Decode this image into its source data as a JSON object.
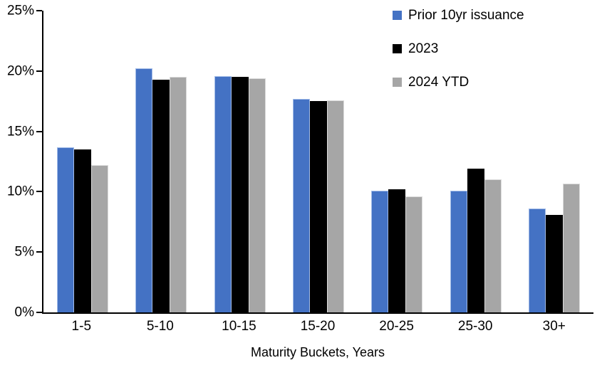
{
  "chart_data": {
    "type": "bar",
    "title": "",
    "xlabel": "Maturity Buckets, Years",
    "ylabel": "",
    "ylim": [
      0,
      25
    ],
    "ytick_step": 5,
    "ytick_labels": [
      "0%",
      "5%",
      "10%",
      "15%",
      "20%",
      "25%"
    ],
    "grid": false,
    "legend_position": "top-right",
    "categories": [
      "1-5",
      "5-10",
      "10-15",
      "15-20",
      "20-25",
      "25-30",
      "30+"
    ],
    "series": [
      {
        "name": "Prior 10yr issuance",
        "color": "#4472C4",
        "border_color": "#A3BCE8",
        "values": [
          13.7,
          20.2,
          19.6,
          17.7,
          10.1,
          10.1,
          8.6
        ]
      },
      {
        "name": "2023",
        "color": "#000000",
        "border_color": "#000000",
        "values": [
          13.5,
          19.3,
          19.5,
          17.5,
          10.2,
          11.9,
          8.1
        ]
      },
      {
        "name": "2024 YTD",
        "color": "#A6A6A6",
        "border_color": "#DBDBDB",
        "values": [
          12.2,
          19.5,
          19.4,
          17.6,
          9.6,
          11.0,
          10.7
        ]
      }
    ]
  }
}
